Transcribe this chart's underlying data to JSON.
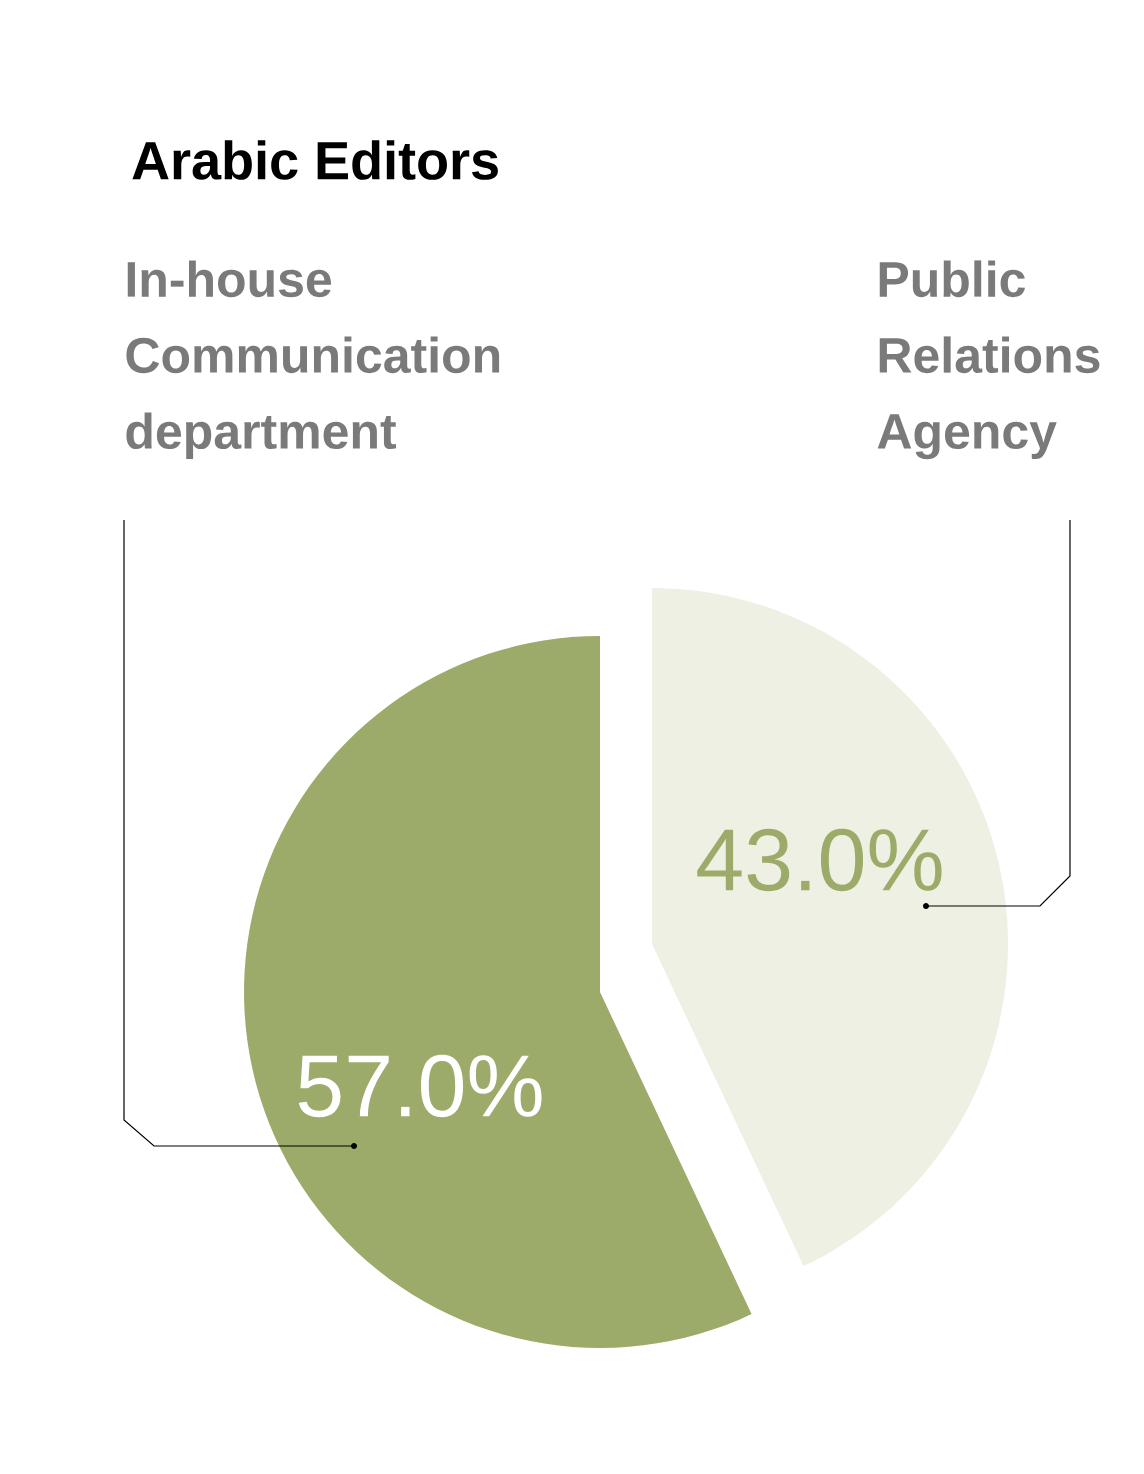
{
  "chart_data": {
    "type": "pie",
    "title": "Arabic Editors",
    "categories": [
      "In-house Communication department",
      "Public Relations Agency"
    ],
    "values": [
      57.0,
      43.0
    ],
    "colors": [
      "#9cab69",
      "#eef0e3"
    ],
    "value_labels": [
      "57.0%",
      "43.0%"
    ]
  }
}
